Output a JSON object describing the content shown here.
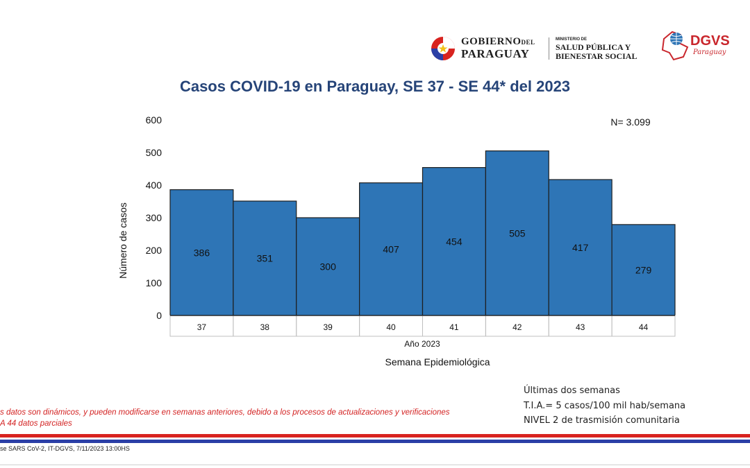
{
  "header": {
    "gov_line1": "GOBIERNO",
    "gov_line1_small": "DEL",
    "gov_line2": "PARAGUAY",
    "ministry_small": "MINISTERIO DE",
    "ministry_line1": "SALUD PÚBLICA Y",
    "ministry_line2": "BIENESTAR SOCIAL",
    "dgvs": "DGVS",
    "dgvs_sub": "Paraguay"
  },
  "chart_data": {
    "type": "bar",
    "title": "Casos COVID-19 en Paraguay, SE 37 - SE 44* del  2023",
    "categories": [
      "37",
      "38",
      "39",
      "40",
      "41",
      "42",
      "43",
      "44"
    ],
    "values": [
      386,
      351,
      300,
      407,
      454,
      505,
      417,
      279
    ],
    "ylabel": "Número de casos",
    "xlabel_year": "Año 2023",
    "xlabel": "Semana Epidemiológica",
    "ylim": [
      0,
      600
    ],
    "yticks": [
      0,
      100,
      200,
      300,
      400,
      500,
      600
    ],
    "annotation": "N= 3.099",
    "bar_color": "#2e75b6",
    "grid": false
  },
  "notes": {
    "left_line1": "s datos son dinámicos, y pueden modificarse en semanas anteriores, debido a los procesos de actualizaciones y verificaciones",
    "left_line2": "A 44 datos parciales",
    "right_line1": "Últimas dos semanas",
    "right_line2": "T.I.A.= 5 casos/100 mil hab/semana",
    "right_line3": "NIVEL 2 de trasmisión comunitaria"
  },
  "footer": {
    "source": "se SARS CoV-2, IT-DGVS, 7/11/2023 13:00HS"
  },
  "colors": {
    "title": "#264478",
    "red_note": "#d32222",
    "band_red": "#d8231f",
    "band_blue": "#2b3fa6"
  }
}
